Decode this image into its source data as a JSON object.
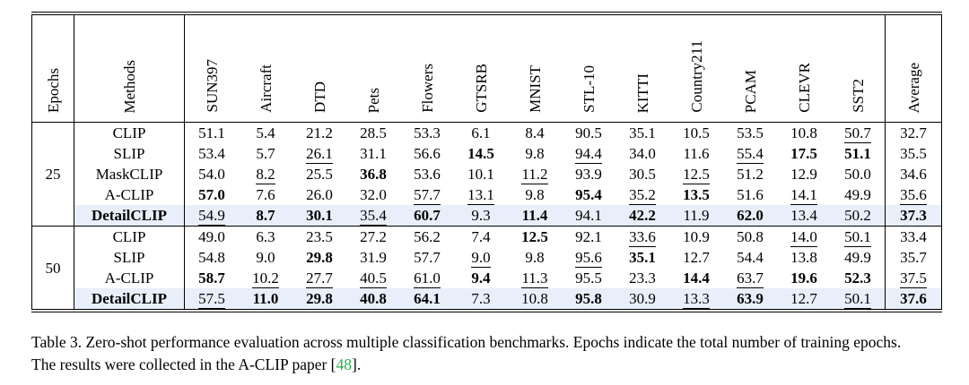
{
  "table": {
    "columns": [
      "Epochs",
      "Methods",
      "SUN397",
      "Aircraft",
      "DTD",
      "Pets",
      "Flowers",
      "GTSRB",
      "MNIST",
      "STL-10",
      "KITTI",
      "Country211",
      "PCAM",
      "CLEVR",
      "SST2",
      "Average"
    ],
    "value_markers": {
      "bold_prefix": "*",
      "underline_prefix": "_"
    },
    "highlight_color": "#e8effa",
    "groups": [
      {
        "epochs": "25",
        "rows": [
          {
            "method": "CLIP",
            "highlight": false,
            "values": [
              "51.1",
              "5.4",
              "21.2",
              "28.5",
              "53.3",
              "6.1",
              "8.4",
              "90.5",
              "35.1",
              "10.5",
              "53.5",
              "10.8",
              "_50.7",
              "32.7"
            ]
          },
          {
            "method": "SLIP",
            "highlight": false,
            "values": [
              "53.4",
              "5.7",
              "_26.1",
              "31.1",
              "56.6",
              "*14.5",
              "9.8",
              "_94.4",
              "34.0",
              "11.6",
              "_55.4",
              "*17.5",
              "*51.1",
              "35.5"
            ]
          },
          {
            "method": "MaskCLIP",
            "highlight": false,
            "values": [
              "54.0",
              "_8.2",
              "25.5",
              "*36.8",
              "53.6",
              "10.1",
              "_11.2",
              "93.9",
              "30.5",
              "_12.5",
              "51.2",
              "12.9",
              "50.0",
              "34.6"
            ]
          },
          {
            "method": "A-CLIP",
            "highlight": false,
            "values": [
              "*57.0",
              "7.6",
              "26.0",
              "32.0",
              "_57.7",
              "_13.1",
              "9.8",
              "*95.4",
              "_35.2",
              "*13.5",
              "51.6",
              "_14.1",
              "49.9",
              "_35.6"
            ]
          },
          {
            "method": "DetailCLIP",
            "highlight": true,
            "values": [
              "_54.9",
              "*8.7",
              "*30.1",
              "_35.4",
              "*60.7",
              "9.3",
              "*11.4",
              "94.1",
              "*42.2",
              "11.9",
              "*62.0",
              "13.4",
              "50.2",
              "*37.3"
            ]
          }
        ]
      },
      {
        "epochs": "50",
        "rows": [
          {
            "method": "CLIP",
            "highlight": false,
            "values": [
              "49.0",
              "6.3",
              "23.5",
              "27.2",
              "56.2",
              "7.4",
              "*12.5",
              "92.1",
              "_33.6",
              "10.9",
              "50.8",
              "_14.0",
              "_50.1",
              "33.4"
            ]
          },
          {
            "method": "SLIP",
            "highlight": false,
            "values": [
              "54.8",
              "9.0",
              "*29.8",
              "31.9",
              "57.7",
              "_9.0",
              "9.8",
              "_95.6",
              "*35.1",
              "12.7",
              "54.4",
              "13.8",
              "49.9",
              "35.7"
            ]
          },
          {
            "method": "A-CLIP",
            "highlight": false,
            "values": [
              "*58.7",
              "_10.2",
              "_27.7",
              "_40.5",
              "_61.0",
              "*9.4",
              "_11.3",
              "95.5",
              "23.3",
              "*14.4",
              "_63.7",
              "*19.6",
              "*52.3",
              "_37.5"
            ]
          },
          {
            "method": "DetailCLIP",
            "highlight": true,
            "values": [
              "_57.5",
              "*11.0",
              "*29.8",
              "*40.8",
              "*64.1",
              "7.3",
              "10.8",
              "*95.8",
              "30.9",
              "_13.3",
              "*63.9",
              "12.7",
              "_50.1",
              "*37.6"
            ]
          }
        ]
      }
    ]
  },
  "caption": {
    "line1": "Table 3. Zero-shot performance evaluation across multiple classification benchmarks. Epochs indicate the total number of training epochs.",
    "line2_before": "The results were collected in the A-CLIP paper [",
    "cite": "48",
    "line2_after": "].",
    "cite_color": "#22b14c"
  }
}
